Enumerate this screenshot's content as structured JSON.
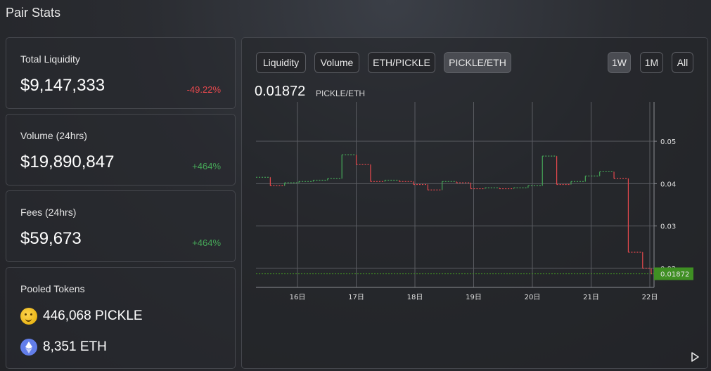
{
  "page_title": "Pair Stats",
  "stats": [
    {
      "label": "Total Liquidity",
      "value": "$9,147,333",
      "change": "-49.22%",
      "direction": "negative"
    },
    {
      "label": "Volume (24hrs)",
      "value": "$19,890,847",
      "change": "+464%",
      "direction": "positive"
    },
    {
      "label": "Fees (24hrs)",
      "value": "$59,673",
      "change": "+464%",
      "direction": "positive"
    }
  ],
  "pooled": {
    "label": "Pooled Tokens",
    "tokens": [
      {
        "amount": "446,068",
        "symbol": "PICKLE",
        "icon": "thinking-face-icon"
      },
      {
        "amount": "8,351",
        "symbol": "ETH",
        "icon": "ethereum-icon"
      }
    ]
  },
  "tabs": {
    "liquidity": "Liquidity",
    "volume": "Volume",
    "eth_pickle": "ETH/PICKLE",
    "pickle_eth": "PICKLE/ETH",
    "active": "PICKLE/ETH"
  },
  "ranges": {
    "w1": "1W",
    "m1": "1M",
    "all": "All",
    "active": "1W"
  },
  "price": {
    "value": "0.01872",
    "unit": "PICKLE/ETH"
  },
  "colors": {
    "up": "#46a758",
    "down": "#e5484d",
    "price_marker": "#3f8f23"
  },
  "chart_data": {
    "type": "line",
    "x_ticks": [
      "16日",
      "17日",
      "18日",
      "19日",
      "20日",
      "21日",
      "22日"
    ],
    "y_ticks": [
      "0.05",
      "0.04",
      "0.03",
      "0.02"
    ],
    "ylim": [
      0.0155,
      0.0593
    ],
    "last_value_label": "0.01872",
    "x": [
      0,
      0.25,
      0.5,
      0.75,
      1,
      1.25,
      1.5,
      1.75,
      2,
      2.25,
      2.5,
      2.75,
      3,
      3.25,
      3.5,
      3.75,
      4,
      4.25,
      4.5,
      4.75,
      5,
      5.25,
      5.5,
      5.75,
      6,
      6.25,
      6.5,
      6.75,
      6.9
    ],
    "values": [
      0.0415,
      0.0395,
      0.0402,
      0.0405,
      0.0408,
      0.0412,
      0.0468,
      0.0445,
      0.0405,
      0.0408,
      0.0405,
      0.0398,
      0.0385,
      0.0405,
      0.0402,
      0.0388,
      0.039,
      0.0388,
      0.039,
      0.0395,
      0.0465,
      0.0398,
      0.0405,
      0.0418,
      0.0428,
      0.0412,
      0.0238,
      0.02,
      0.01872
    ],
    "grid": true
  }
}
